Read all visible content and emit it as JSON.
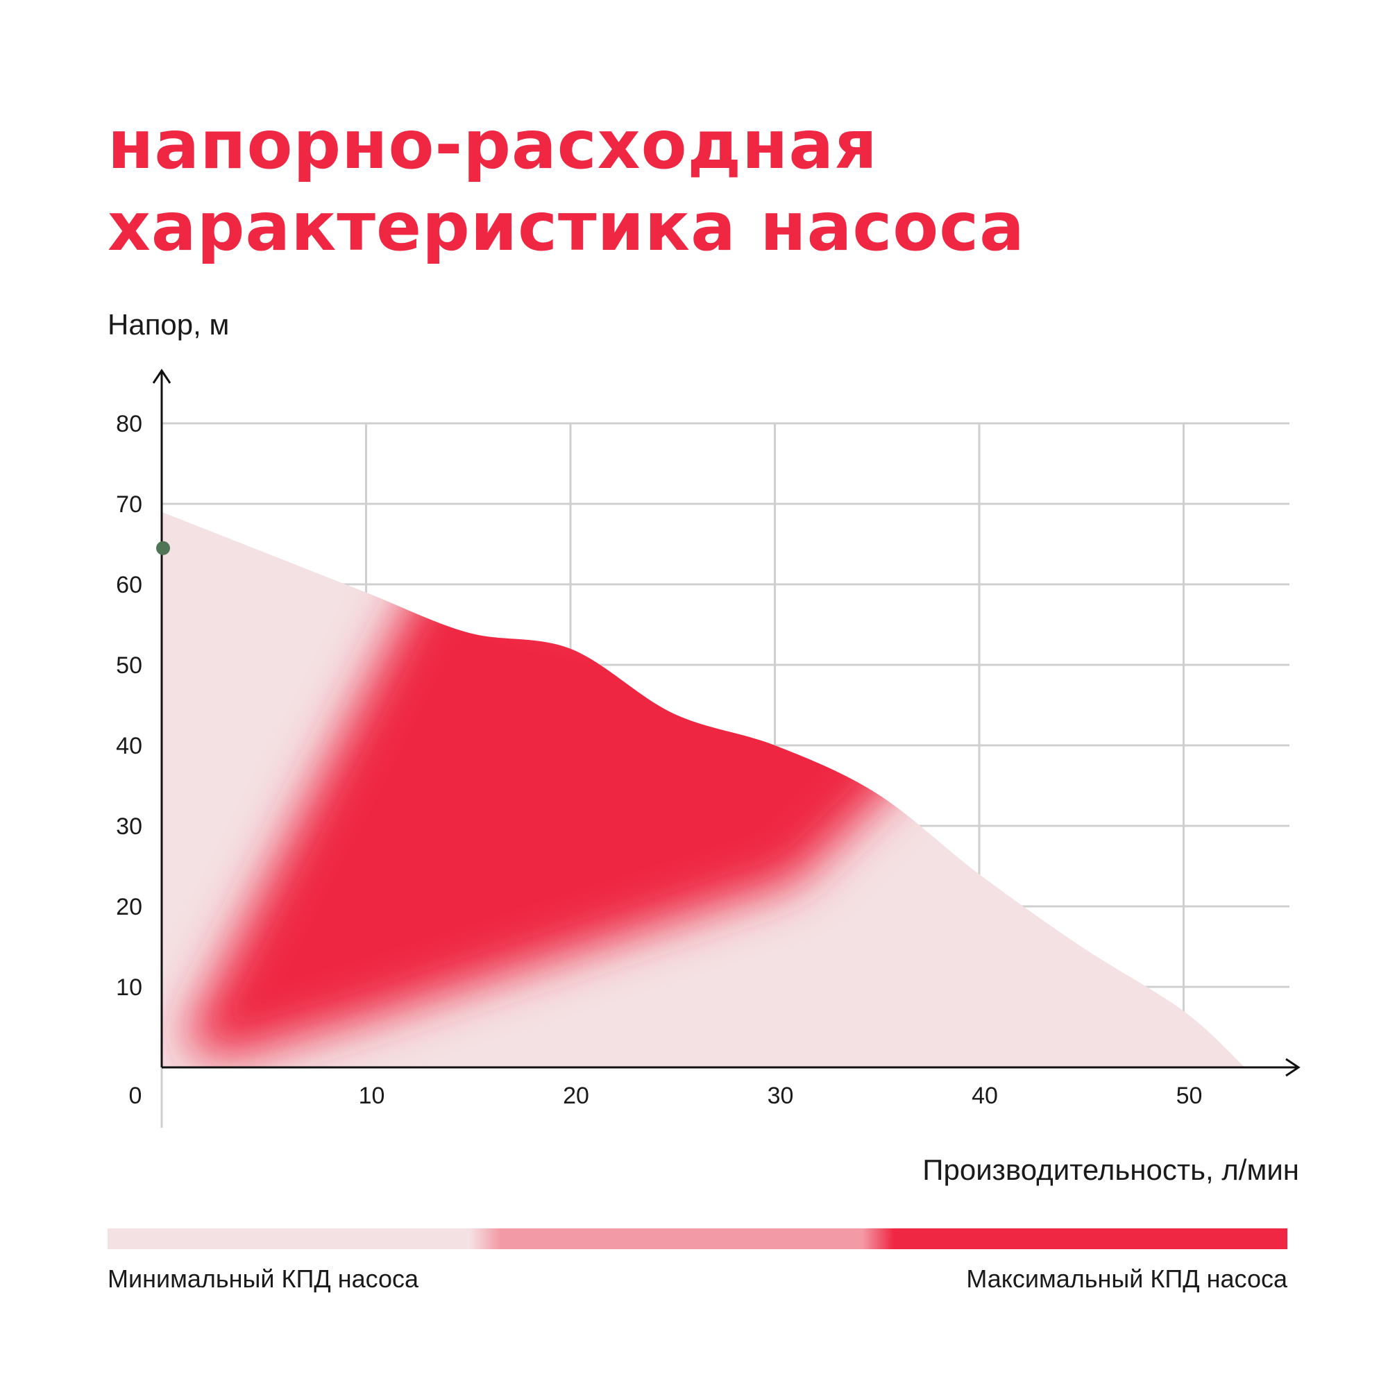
{
  "title": {
    "line1": "напорно-расходная",
    "line2": "характеристика насоса"
  },
  "legend": {
    "min_label": "Минимальный КПД насоса",
    "max_label": "Максимальный КПД насоса",
    "colors": [
      "#f4e1e3",
      "#f29aa5",
      "#ef2743"
    ]
  },
  "chart_data": {
    "type": "area",
    "xlabel": "Производительность, л/мин",
    "ylabel": "Напор, м",
    "xlim": [
      0,
      55
    ],
    "ylim": [
      0,
      80
    ],
    "x_ticks": [
      0,
      10,
      20,
      30,
      40,
      50
    ],
    "y_ticks": [
      10,
      20,
      30,
      40,
      50,
      60,
      70,
      80
    ],
    "origin_label": "0",
    "grid": true,
    "series": [
      {
        "x": [
          0,
          5,
          10,
          15,
          20,
          25,
          30,
          35,
          40,
          45,
          50,
          53
        ],
        "values": [
          69,
          64,
          59,
          54,
          52,
          44,
          40,
          34,
          24,
          15,
          7,
          0
        ]
      }
    ],
    "marker": {
      "x": 0,
      "y": 64.5,
      "color": "#4f7556"
    },
    "colors": {
      "low": "#f4e1e3",
      "high": "#ef2743",
      "grid": "#cfcfcf",
      "axis": "#111111"
    }
  }
}
